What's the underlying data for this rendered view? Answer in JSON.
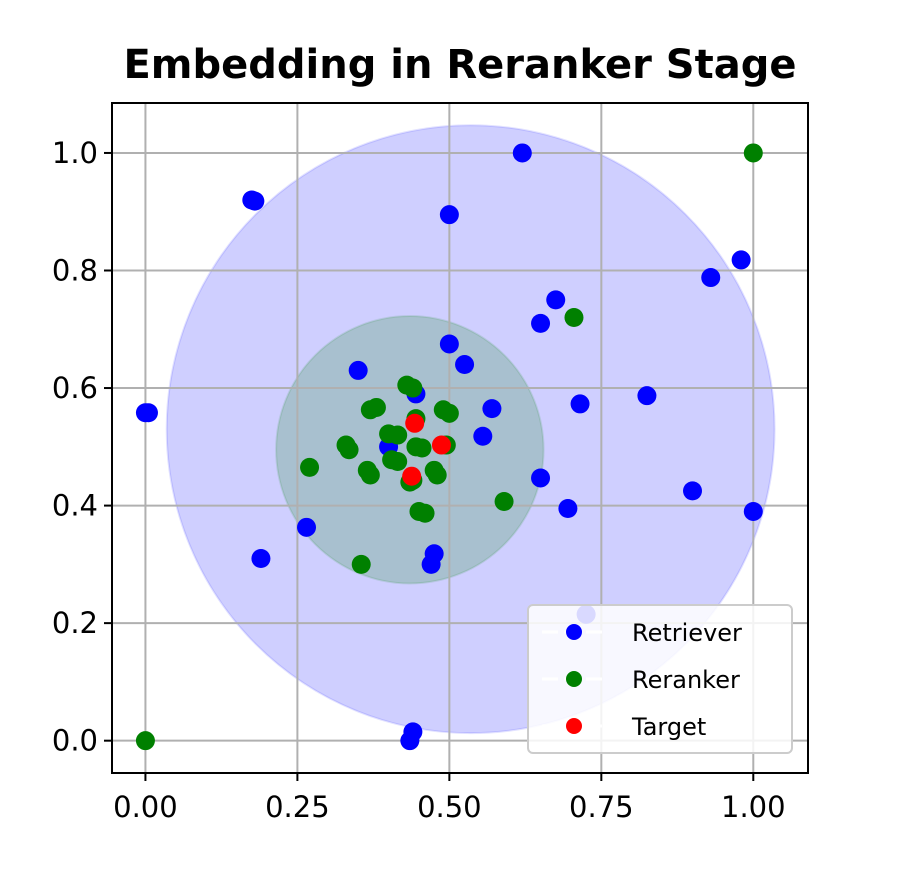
{
  "chart_data": {
    "type": "scatter",
    "title": "Embedding in Reranker Stage",
    "xlabel": "",
    "ylabel": "",
    "xlim": [
      -0.055,
      1.09
    ],
    "ylim": [
      -0.055,
      1.085
    ],
    "xticks": [
      0.0,
      0.25,
      0.5,
      0.75,
      1.0
    ],
    "xtick_labels": [
      "0.00",
      "0.25",
      "0.50",
      "0.75",
      "1.00"
    ],
    "yticks": [
      0.0,
      0.2,
      0.4,
      0.6,
      0.8,
      1.0
    ],
    "ytick_labels": [
      "0.0",
      "0.2",
      "0.4",
      "0.6",
      "0.8",
      "1.0"
    ],
    "grid": true,
    "legend_position": "lower-right",
    "regions": [
      {
        "name": "retriever-region",
        "center": [
          0.535,
          0.53
        ],
        "radius": 0.5,
        "color": "#0000ff",
        "alpha": 0.19
      },
      {
        "name": "reranker-region",
        "center": [
          0.435,
          0.495
        ],
        "radius": 0.22,
        "color": "#008000",
        "alpha": 0.19
      }
    ],
    "series": [
      {
        "name": "Retriever",
        "color": "#0000ff",
        "points": [
          [
            0.62,
            1.0
          ],
          [
            0.5,
            0.895
          ],
          [
            0.175,
            0.92
          ],
          [
            0.18,
            0.918
          ],
          [
            0.98,
            0.818
          ],
          [
            0.93,
            0.788
          ],
          [
            0.675,
            0.75
          ],
          [
            0.65,
            0.71
          ],
          [
            0.5,
            0.675
          ],
          [
            0.525,
            0.64
          ],
          [
            0.35,
            0.63
          ],
          [
            0.445,
            0.59
          ],
          [
            0.825,
            0.587
          ],
          [
            0.715,
            0.573
          ],
          [
            0.57,
            0.565
          ],
          [
            0.0,
            0.558
          ],
          [
            0.005,
            0.558
          ],
          [
            0.555,
            0.518
          ],
          [
            0.4,
            0.5
          ],
          [
            0.65,
            0.447
          ],
          [
            0.9,
            0.425
          ],
          [
            0.695,
            0.395
          ],
          [
            1.0,
            0.39
          ],
          [
            0.265,
            0.363
          ],
          [
            0.19,
            0.31
          ],
          [
            0.475,
            0.318
          ],
          [
            0.47,
            0.3
          ],
          [
            0.725,
            0.215
          ],
          [
            0.44,
            0.015
          ],
          [
            0.435,
            0.0
          ]
        ]
      },
      {
        "name": "Reranker",
        "color": "#008000",
        "points": [
          [
            1.0,
            1.0
          ],
          [
            0.0,
            0.0
          ],
          [
            0.705,
            0.72
          ],
          [
            0.43,
            0.605
          ],
          [
            0.44,
            0.6
          ],
          [
            0.37,
            0.563
          ],
          [
            0.38,
            0.567
          ],
          [
            0.49,
            0.563
          ],
          [
            0.5,
            0.557
          ],
          [
            0.445,
            0.548
          ],
          [
            0.4,
            0.522
          ],
          [
            0.415,
            0.52
          ],
          [
            0.33,
            0.503
          ],
          [
            0.335,
            0.495
          ],
          [
            0.445,
            0.5
          ],
          [
            0.455,
            0.498
          ],
          [
            0.495,
            0.503
          ],
          [
            0.405,
            0.478
          ],
          [
            0.415,
            0.475
          ],
          [
            0.27,
            0.465
          ],
          [
            0.365,
            0.46
          ],
          [
            0.37,
            0.452
          ],
          [
            0.475,
            0.46
          ],
          [
            0.48,
            0.452
          ],
          [
            0.435,
            0.44
          ],
          [
            0.44,
            0.443
          ],
          [
            0.59,
            0.407
          ],
          [
            0.45,
            0.39
          ],
          [
            0.46,
            0.387
          ],
          [
            0.355,
            0.3
          ]
        ]
      },
      {
        "name": "Target",
        "color": "#ff0000",
        "points": [
          [
            0.443,
            0.54
          ],
          [
            0.487,
            0.503
          ],
          [
            0.438,
            0.45
          ]
        ]
      }
    ]
  }
}
